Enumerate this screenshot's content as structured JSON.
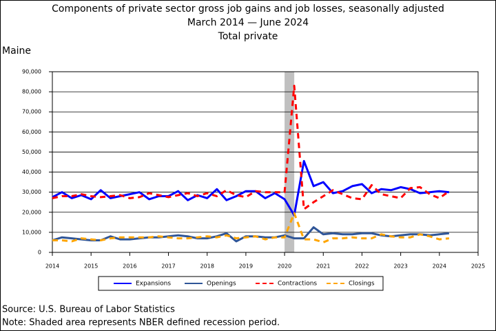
{
  "chart_data": {
    "type": "line",
    "title": "Components of private sector gross job gains and job losses, seasonally adjusted",
    "subtitle": "March 2014 — June 2024",
    "subtitle2": "Total private",
    "region_label": "Maine",
    "source": "Source: U.S. Bureau of Labor Statistics",
    "note": "Note: Shaded area represents NBER defined recession period.",
    "x": [
      2014,
      2014.25,
      2014.5,
      2014.75,
      2015,
      2015.25,
      2015.5,
      2015.75,
      2016,
      2016.25,
      2016.5,
      2016.75,
      2017,
      2017.25,
      2017.5,
      2017.75,
      2018,
      2018.25,
      2018.5,
      2018.75,
      2019,
      2019.25,
      2019.5,
      2019.75,
      2020,
      2020.25,
      2020.5,
      2020.75,
      2021,
      2021.25,
      2021.5,
      2021.75,
      2022,
      2022.25,
      2022.5,
      2022.75,
      2023,
      2023.25,
      2023.5,
      2023.75,
      2024,
      2024.25
    ],
    "xlim": [
      2014,
      2025
    ],
    "xticks": [
      2014,
      2015,
      2016,
      2017,
      2018,
      2019,
      2020,
      2021,
      2022,
      2023,
      2024,
      2025
    ],
    "ylim": [
      0,
      90000
    ],
    "yticks": [
      0,
      {
        "value": 10000,
        "label": "10,000"
      },
      {
        "value": 20000,
        "label": "20,000"
      },
      {
        "value": 30000,
        "label": "30,000"
      },
      {
        "value": 40000,
        "label": "40,000"
      },
      {
        "value": 50000,
        "label": "50,000"
      },
      {
        "value": 60000,
        "label": "60,000"
      },
      {
        "value": 70000,
        "label": "70,000"
      },
      {
        "value": 80000,
        "label": "80,000"
      },
      {
        "value": 90000,
        "label": "90,000"
      }
    ],
    "grid": true,
    "recession": [
      2020,
      2020.25
    ],
    "series": [
      {
        "name": "Expansions",
        "color": "#0000ff",
        "dash": false,
        "values": [
          27500,
          30000,
          27000,
          28500,
          26500,
          31000,
          27000,
          28000,
          29000,
          30000,
          26500,
          28000,
          28000,
          30500,
          26000,
          28500,
          27000,
          31500,
          26000,
          28000,
          30500,
          30500,
          27000,
          29500,
          26500,
          18500,
          45500,
          33000,
          35000,
          29500,
          30500,
          33000,
          34000,
          29500,
          31500,
          31000,
          32500,
          31500,
          29500,
          30000,
          30500,
          30000
        ]
      },
      {
        "name": "Openings",
        "color": "#2f5597",
        "dash": false,
        "values": [
          6000,
          7500,
          7000,
          6500,
          6000,
          6000,
          8000,
          6500,
          6500,
          7000,
          7500,
          7500,
          8000,
          8500,
          8000,
          7000,
          7000,
          8000,
          9500,
          5500,
          8000,
          8000,
          7500,
          7500,
          8500,
          7000,
          7000,
          12500,
          9000,
          9500,
          9000,
          9000,
          9500,
          9500,
          8500,
          8000,
          8500,
          9000,
          9000,
          8500,
          9000,
          9500
        ]
      },
      {
        "name": "Contractions",
        "color": "#ff0000",
        "dash": true,
        "values": [
          27000,
          28000,
          28000,
          29000,
          28000,
          27500,
          28000,
          28500,
          27000,
          27500,
          29500,
          28500,
          27500,
          28500,
          29500,
          28000,
          29500,
          28000,
          31000,
          28500,
          27500,
          30500,
          30000,
          30000,
          30000,
          83000,
          21500,
          25000,
          28000,
          31000,
          29000,
          27000,
          26500,
          33500,
          29000,
          28000,
          27000,
          32000,
          32500,
          29000,
          27000,
          30500
        ]
      },
      {
        "name": "Closings",
        "color": "#ffa500",
        "dash": true,
        "values": [
          6000,
          6000,
          5500,
          7000,
          6500,
          6000,
          7000,
          7500,
          7500,
          7500,
          7500,
          8000,
          7500,
          7000,
          7000,
          7500,
          8000,
          7500,
          8500,
          7000,
          7500,
          8000,
          6500,
          7500,
          7500,
          19500,
          6500,
          6500,
          5000,
          7000,
          7000,
          7500,
          7000,
          7000,
          9000,
          8000,
          7500,
          7500,
          9000,
          8000,
          6500,
          7000
        ]
      }
    ]
  }
}
